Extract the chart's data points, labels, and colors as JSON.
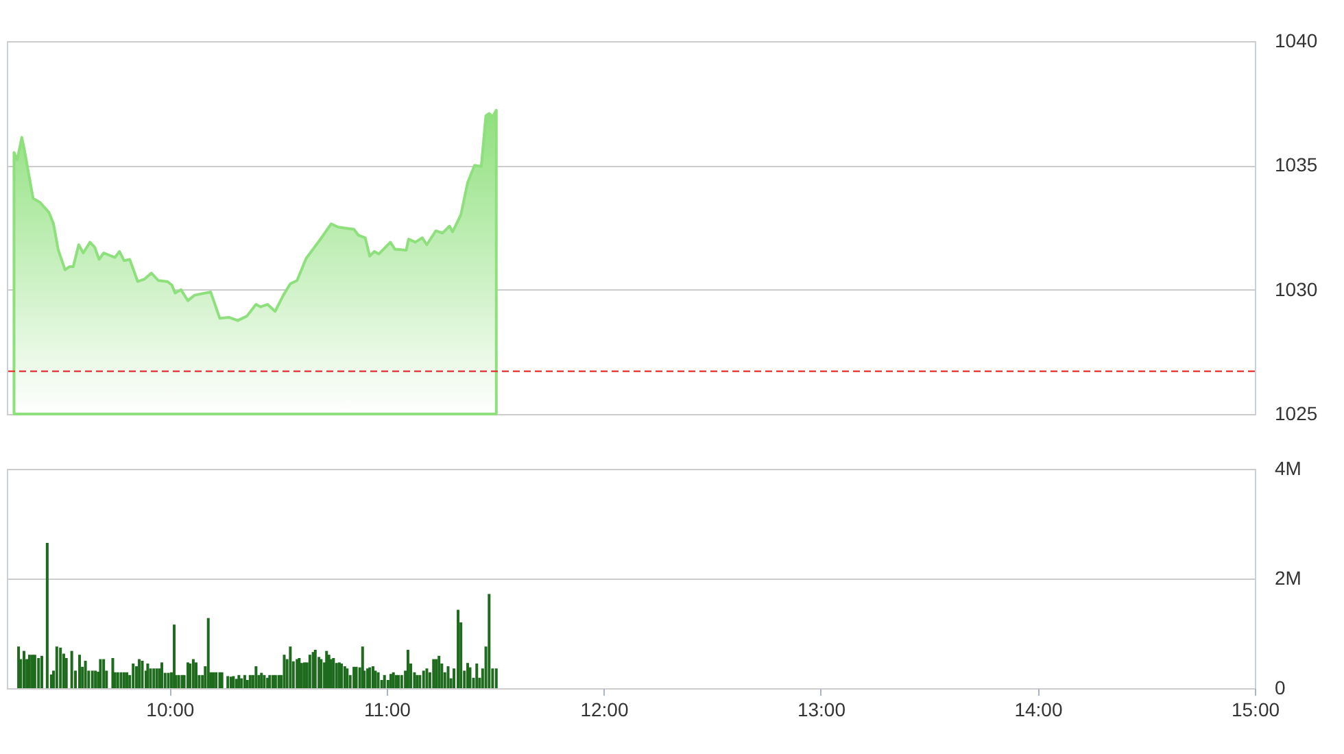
{
  "chart_data": [
    {
      "type": "area",
      "color": "#8ee07c",
      "xlim": [
        9.25,
        15
      ],
      "ylim": [
        1025,
        1040
      ],
      "yticks": [
        1025,
        1030,
        1035,
        1040
      ],
      "grid": "y",
      "tick_labels": "y",
      "ref_lines": [
        {
          "axis": "y",
          "value": 1026.72,
          "color": "#e03030",
          "line_style": "dashed"
        }
      ],
      "x": [
        9.283,
        9.298,
        9.319,
        9.333,
        9.371,
        9.402,
        9.444,
        9.465,
        9.486,
        9.518,
        9.539,
        9.556,
        9.581,
        9.602,
        9.633,
        9.654,
        9.675,
        9.696,
        9.748,
        9.769,
        9.79,
        9.816,
        9.853,
        9.885,
        9.916,
        9.948,
        9.99,
        10.01,
        10.025,
        10.052,
        10.084,
        10.115,
        10.189,
        10.231,
        10.273,
        10.314,
        10.356,
        10.398,
        10.419,
        10.451,
        10.486,
        10.524,
        10.556,
        10.587,
        10.629,
        10.692,
        10.744,
        10.776,
        10.849,
        10.87,
        10.901,
        10.922,
        10.943,
        10.964,
        11.017,
        11.038,
        11.09,
        11.101,
        11.132,
        11.164,
        11.185,
        11.226,
        11.258,
        11.289,
        11.304,
        11.342,
        11.373,
        11.405,
        11.436,
        11.457,
        11.472,
        11.488,
        11.505
      ],
      "values": [
        1035.52,
        1035.24,
        1036.13,
        1035.52,
        1033.67,
        1033.52,
        1033.11,
        1032.65,
        1031.63,
        1030.8,
        1030.93,
        1030.93,
        1031.81,
        1031.48,
        1031.91,
        1031.72,
        1031.22,
        1031.48,
        1031.3,
        1031.54,
        1031.17,
        1031.22,
        1030.33,
        1030.43,
        1030.67,
        1030.37,
        1030.33,
        1030.19,
        1029.87,
        1030.0,
        1029.56,
        1029.78,
        1029.91,
        1028.85,
        1028.89,
        1028.76,
        1028.94,
        1029.41,
        1029.31,
        1029.41,
        1029.13,
        1029.78,
        1030.24,
        1030.37,
        1031.26,
        1032.0,
        1032.65,
        1032.52,
        1032.43,
        1032.19,
        1032.09,
        1031.35,
        1031.54,
        1031.44,
        1031.91,
        1031.63,
        1031.59,
        1032.04,
        1031.91,
        1032.09,
        1031.81,
        1032.37,
        1032.28,
        1032.56,
        1032.33,
        1033.02,
        1034.31,
        1035.0,
        1034.96,
        1037.0,
        1037.09,
        1036.96,
        1037.22
      ]
    },
    {
      "type": "bar",
      "color": "#1e6b1e",
      "xlim": [
        9.25,
        15
      ],
      "xticks": [
        {
          "value": 10,
          "label": "10:00"
        },
        {
          "value": 11,
          "label": "11:00"
        },
        {
          "value": 12,
          "label": "12:00"
        },
        {
          "value": 13,
          "label": "13:00"
        },
        {
          "value": 14,
          "label": "14:00"
        },
        {
          "value": 15,
          "label": "15:00"
        }
      ],
      "ylim": [
        0,
        4
      ],
      "yticks": [
        0,
        {
          "value": 2,
          "label": "2M"
        },
        {
          "value": 4,
          "label": "4M"
        }
      ],
      "grid": "y",
      "x": [
        9.304,
        9.314,
        9.329,
        9.342,
        9.354,
        9.367,
        9.379,
        9.396,
        9.411,
        9.436,
        9.455,
        9.465,
        9.48,
        9.497,
        9.512,
        9.524,
        9.549,
        9.566,
        9.585,
        9.598,
        9.612,
        9.627,
        9.644,
        9.658,
        9.671,
        9.681,
        9.696,
        9.709,
        9.738,
        9.748,
        9.761,
        9.776,
        9.79,
        9.803,
        9.816,
        9.832,
        9.847,
        9.86,
        9.874,
        9.891,
        9.899,
        9.912,
        9.927,
        9.941,
        9.954,
        9.964,
        9.979,
        9.994,
        10.008,
        10.021,
        10.029,
        10.042,
        10.057,
        10.067,
        10.084,
        10.094,
        10.109,
        10.122,
        10.136,
        10.151,
        10.164,
        10.178,
        10.189,
        10.201,
        10.214,
        10.231,
        10.241,
        10.268,
        10.283,
        10.294,
        10.308,
        10.319,
        10.331,
        10.346,
        10.358,
        10.371,
        10.384,
        10.398,
        10.411,
        10.423,
        10.436,
        10.451,
        10.461,
        10.476,
        10.488,
        10.503,
        10.514,
        10.528,
        10.541,
        10.556,
        10.57,
        10.587,
        10.597,
        10.608,
        10.621,
        10.633,
        10.646,
        10.661,
        10.671,
        10.688,
        10.698,
        10.713,
        10.723,
        10.734,
        10.744,
        10.755,
        10.769,
        10.782,
        10.792,
        10.807,
        10.818,
        10.832,
        10.849,
        10.86,
        10.876,
        10.889,
        10.897,
        10.912,
        10.922,
        10.937,
        10.948,
        10.961,
        10.977,
        10.99,
        11.006,
        11.019,
        11.031,
        11.044,
        11.054,
        11.069,
        11.086,
        11.098,
        11.111,
        11.128,
        11.14,
        11.153,
        11.17,
        11.185,
        11.199,
        11.216,
        11.228,
        11.241,
        11.254,
        11.268,
        11.283,
        11.296,
        11.31,
        11.329,
        11.342,
        11.358,
        11.373,
        11.384,
        11.4,
        11.415,
        11.428,
        11.442,
        11.457,
        11.472,
        11.488,
        11.505
      ],
      "values": [
        0.76,
        0.53,
        0.68,
        0.53,
        0.61,
        0.61,
        0.61,
        0.55,
        0.59,
        2.65,
        0.25,
        0.32,
        0.76,
        0.74,
        0.63,
        0.55,
        0.68,
        0.32,
        0.61,
        0.39,
        0.5,
        0.32,
        0.32,
        0.32,
        0.3,
        0.53,
        0.53,
        0.32,
        0.55,
        0.29,
        0.29,
        0.29,
        0.29,
        0.29,
        0.24,
        0.45,
        0.4,
        0.53,
        0.5,
        0.32,
        0.45,
        0.36,
        0.36,
        0.36,
        0.36,
        0.47,
        0.28,
        0.28,
        0.29,
        1.16,
        0.24,
        0.24,
        0.24,
        0.24,
        0.47,
        0.45,
        0.53,
        0.47,
        0.24,
        0.24,
        0.4,
        1.28,
        0.29,
        0.29,
        0.29,
        0.29,
        0.29,
        0.22,
        0.21,
        0.22,
        0.17,
        0.24,
        0.18,
        0.24,
        0.15,
        0.24,
        0.24,
        0.4,
        0.24,
        0.28,
        0.24,
        0.19,
        0.24,
        0.24,
        0.24,
        0.24,
        0.24,
        0.61,
        0.53,
        0.76,
        0.49,
        0.53,
        0.55,
        0.46,
        0.47,
        0.47,
        0.61,
        0.66,
        0.7,
        0.57,
        0.53,
        0.47,
        0.68,
        0.61,
        0.53,
        0.55,
        0.46,
        0.47,
        0.45,
        0.4,
        0.36,
        0.24,
        0.39,
        0.39,
        0.38,
        0.76,
        0.32,
        0.36,
        0.38,
        0.4,
        0.32,
        0.29,
        0.15,
        0.24,
        0.15,
        0.26,
        0.29,
        0.24,
        0.24,
        0.24,
        0.32,
        0.7,
        0.45,
        0.29,
        0.24,
        0.24,
        0.32,
        0.36,
        0.29,
        0.53,
        0.53,
        0.59,
        0.45,
        0.29,
        0.4,
        0.18,
        0.36,
        1.43,
        1.2,
        0.32,
        0.46,
        0.38,
        0.19,
        0.45,
        0.19,
        0.36,
        0.76,
        1.72,
        0.36,
        0.36
      ]
    }
  ]
}
